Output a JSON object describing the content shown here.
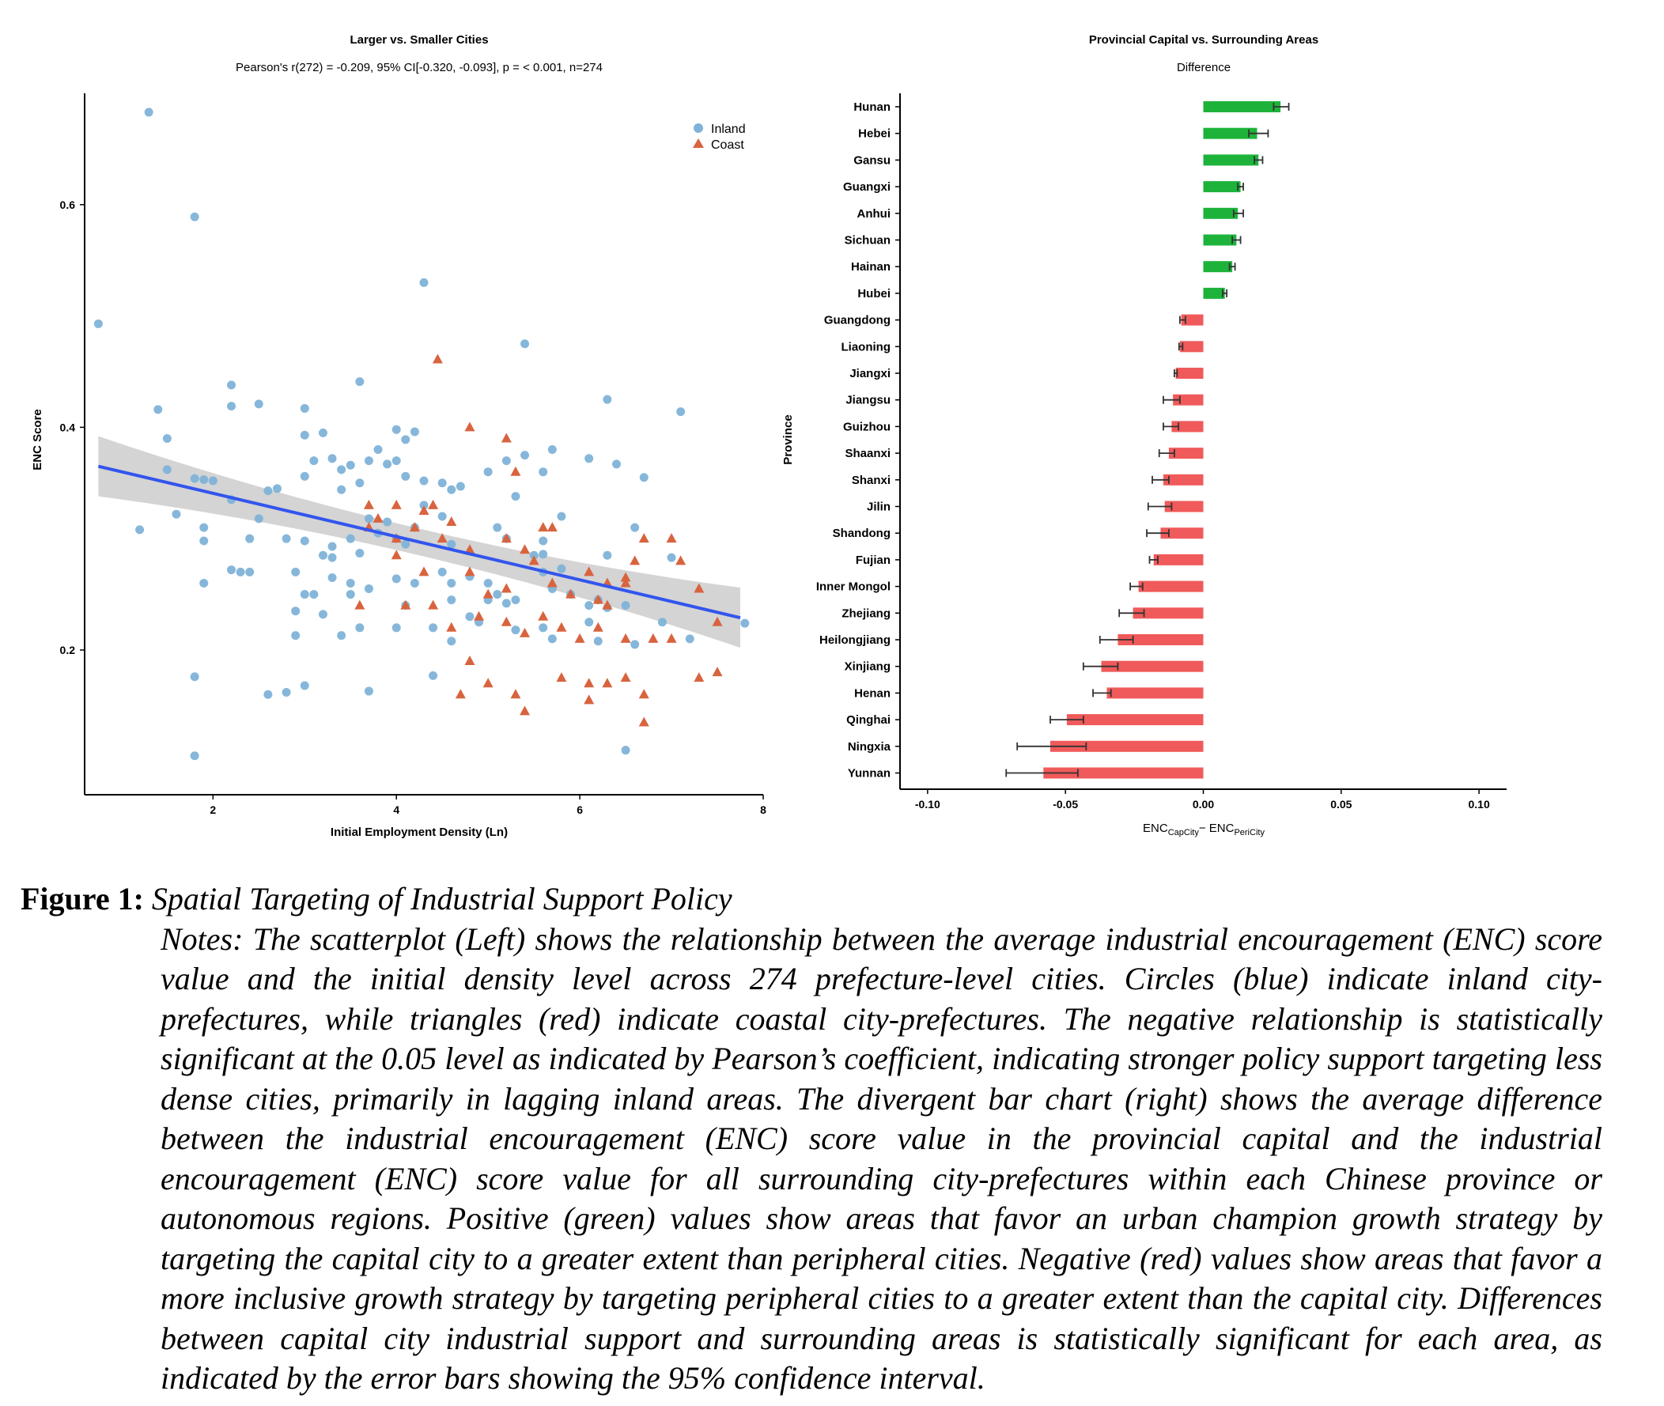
{
  "scatter": {
    "title": "Larger vs. Smaller Cities",
    "subtitle": "Pearson's r(272) = -0.209, 95% CI[-0.320, -0.093], p = < 0.001, n=274",
    "xlabel": "Initial Employment Density (Ln)",
    "ylabel": "ENC Score",
    "legend": [
      "Inland",
      "Coast"
    ],
    "colors": {
      "inland": "#7fb3d8",
      "coast": "#d8643f",
      "fit": "#3355ee",
      "band": "#cccccc"
    }
  },
  "bars": {
    "title": "Provincial Capital vs. Surrounding Areas",
    "subtitle": "Difference",
    "ylabel": "Province",
    "xlabel_main": "ENC",
    "xlabel_sub1": "CapCity",
    "xlabel_mid": "− ENC",
    "xlabel_sub2": "PeriCity",
    "colors": {
      "positive": "#1db33a",
      "negative": "#f05a5a"
    }
  },
  "chart_data": [
    {
      "type": "scatter",
      "title": "Larger vs. Smaller Cities",
      "xlabel": "Initial Employment Density (Ln)",
      "ylabel": "ENC Score",
      "xlim": [
        0.6,
        8.0
      ],
      "ylim": [
        0.07,
        0.7
      ],
      "xticks": [
        2,
        4,
        6,
        8
      ],
      "yticks": [
        0.2,
        0.4,
        0.6
      ],
      "grid": false,
      "legend_position": "top-right",
      "fit": {
        "x": [
          0.75,
          7.75
        ],
        "y": [
          0.365,
          0.229
        ],
        "ci_half_width_ends": 0.027,
        "ci_half_width_mid": 0.012
      },
      "series": [
        {
          "name": "Inland",
          "points": [
            [
              0.75,
              0.493
            ],
            [
              1.3,
              0.683
            ],
            [
              1.8,
              0.589
            ],
            [
              4.3,
              0.53
            ],
            [
              5.4,
              0.475
            ],
            [
              3.6,
              0.441
            ],
            [
              1.4,
              0.416
            ],
            [
              2.2,
              0.419
            ],
            [
              2.2,
              0.438
            ],
            [
              2.5,
              0.421
            ],
            [
              3.0,
              0.417
            ],
            [
              1.5,
              0.39
            ],
            [
              3.0,
              0.393
            ],
            [
              3.2,
              0.395
            ],
            [
              4.0,
              0.398
            ],
            [
              4.2,
              0.396
            ],
            [
              4.1,
              0.389
            ],
            [
              4.0,
              0.37
            ],
            [
              3.1,
              0.37
            ],
            [
              3.3,
              0.372
            ],
            [
              3.4,
              0.362
            ],
            [
              3.5,
              0.366
            ],
            [
              3.7,
              0.37
            ],
            [
              3.8,
              0.38
            ],
            [
              3.9,
              0.367
            ],
            [
              4.1,
              0.356
            ],
            [
              4.3,
              0.352
            ],
            [
              4.5,
              0.35
            ],
            [
              4.7,
              0.347
            ],
            [
              5.0,
              0.36
            ],
            [
              5.2,
              0.37
            ],
            [
              5.4,
              0.375
            ],
            [
              5.6,
              0.36
            ],
            [
              5.7,
              0.38
            ],
            [
              6.1,
              0.372
            ],
            [
              6.3,
              0.425
            ],
            [
              6.4,
              0.367
            ],
            [
              6.7,
              0.355
            ],
            [
              7.1,
              0.414
            ],
            [
              1.5,
              0.362
            ],
            [
              1.8,
              0.354
            ],
            [
              1.9,
              0.353
            ],
            [
              2.0,
              0.352
            ],
            [
              2.7,
              0.345
            ],
            [
              2.6,
              0.343
            ],
            [
              3.4,
              0.344
            ],
            [
              3.6,
              0.35
            ],
            [
              3.0,
              0.356
            ],
            [
              4.6,
              0.344
            ],
            [
              5.3,
              0.338
            ],
            [
              4.3,
              0.33
            ],
            [
              4.5,
              0.32
            ],
            [
              3.9,
              0.315
            ],
            [
              3.7,
              0.318
            ],
            [
              3.8,
              0.305
            ],
            [
              2.4,
              0.3
            ],
            [
              1.6,
              0.322
            ],
            [
              1.2,
              0.308
            ],
            [
              1.9,
              0.298
            ],
            [
              1.9,
              0.31
            ],
            [
              2.2,
              0.335
            ],
            [
              2.5,
              0.318
            ],
            [
              2.8,
              0.3
            ],
            [
              3.0,
              0.298
            ],
            [
              3.3,
              0.293
            ],
            [
              3.2,
              0.285
            ],
            [
              3.3,
              0.283
            ],
            [
              3.5,
              0.3
            ],
            [
              3.6,
              0.287
            ],
            [
              4.0,
              0.3
            ],
            [
              4.1,
              0.295
            ],
            [
              4.2,
              0.31
            ],
            [
              4.6,
              0.295
            ],
            [
              5.1,
              0.31
            ],
            [
              5.2,
              0.3
            ],
            [
              5.6,
              0.298
            ],
            [
              5.8,
              0.32
            ],
            [
              5.6,
              0.286
            ],
            [
              5.5,
              0.285
            ],
            [
              5.6,
              0.27
            ],
            [
              5.8,
              0.273
            ],
            [
              6.3,
              0.285
            ],
            [
              6.6,
              0.31
            ],
            [
              7.0,
              0.283
            ],
            [
              2.2,
              0.272
            ],
            [
              2.3,
              0.27
            ],
            [
              2.4,
              0.27
            ],
            [
              2.9,
              0.27
            ],
            [
              3.1,
              0.25
            ],
            [
              3.3,
              0.265
            ],
            [
              3.5,
              0.26
            ],
            [
              4.0,
              0.264
            ],
            [
              4.2,
              0.26
            ],
            [
              4.5,
              0.27
            ],
            [
              4.6,
              0.26
            ],
            [
              4.8,
              0.266
            ],
            [
              5.0,
              0.26
            ],
            [
              5.1,
              0.25
            ],
            [
              5.3,
              0.245
            ],
            [
              5.7,
              0.255
            ],
            [
              5.9,
              0.25
            ],
            [
              6.1,
              0.24
            ],
            [
              6.2,
              0.245
            ],
            [
              6.5,
              0.24
            ],
            [
              1.9,
              0.26
            ],
            [
              2.9,
              0.235
            ],
            [
              3.2,
              0.232
            ],
            [
              3.0,
              0.25
            ],
            [
              3.5,
              0.25
            ],
            [
              3.7,
              0.255
            ],
            [
              4.1,
              0.24
            ],
            [
              4.6,
              0.245
            ],
            [
              4.8,
              0.23
            ],
            [
              4.9,
              0.225
            ],
            [
              5.0,
              0.245
            ],
            [
              5.2,
              0.242
            ],
            [
              5.3,
              0.218
            ],
            [
              5.6,
              0.22
            ],
            [
              6.1,
              0.225
            ],
            [
              6.3,
              0.238
            ],
            [
              6.9,
              0.225
            ],
            [
              7.2,
              0.21
            ],
            [
              7.8,
              0.224
            ],
            [
              2.9,
              0.213
            ],
            [
              3.4,
              0.213
            ],
            [
              3.6,
              0.22
            ],
            [
              4.0,
              0.22
            ],
            [
              4.4,
              0.22
            ],
            [
              4.6,
              0.208
            ],
            [
              5.7,
              0.21
            ],
            [
              6.2,
              0.208
            ],
            [
              6.6,
              0.205
            ],
            [
              1.8,
              0.176
            ],
            [
              3.0,
              0.168
            ],
            [
              2.8,
              0.162
            ],
            [
              2.6,
              0.16
            ],
            [
              3.7,
              0.163
            ],
            [
              4.4,
              0.177
            ],
            [
              1.8,
              0.105
            ],
            [
              6.5,
              0.11
            ]
          ]
        },
        {
          "name": "Coast",
          "points": [
            [
              4.45,
              0.461
            ],
            [
              4.8,
              0.4
            ],
            [
              5.2,
              0.39
            ],
            [
              5.3,
              0.36
            ],
            [
              4.4,
              0.33
            ],
            [
              4.0,
              0.33
            ],
            [
              3.7,
              0.33
            ],
            [
              4.3,
              0.325
            ],
            [
              3.8,
              0.318
            ],
            [
              4.6,
              0.315
            ],
            [
              4.2,
              0.31
            ],
            [
              3.7,
              0.31
            ],
            [
              4.0,
              0.3
            ],
            [
              4.5,
              0.3
            ],
            [
              4.8,
              0.29
            ],
            [
              5.2,
              0.3
            ],
            [
              5.6,
              0.31
            ],
            [
              5.7,
              0.31
            ],
            [
              5.4,
              0.29
            ],
            [
              5.5,
              0.28
            ],
            [
              6.1,
              0.27
            ],
            [
              6.3,
              0.26
            ],
            [
              6.5,
              0.265
            ],
            [
              6.7,
              0.3
            ],
            [
              7.0,
              0.3
            ],
            [
              7.1,
              0.28
            ],
            [
              6.6,
              0.28
            ],
            [
              6.5,
              0.26
            ],
            [
              4.0,
              0.285
            ],
            [
              4.3,
              0.27
            ],
            [
              4.8,
              0.27
            ],
            [
              5.0,
              0.25
            ],
            [
              5.2,
              0.255
            ],
            [
              5.7,
              0.26
            ],
            [
              5.9,
              0.25
            ],
            [
              6.2,
              0.245
            ],
            [
              6.3,
              0.24
            ],
            [
              3.6,
              0.24
            ],
            [
              4.1,
              0.24
            ],
            [
              4.4,
              0.24
            ],
            [
              4.6,
              0.22
            ],
            [
              4.9,
              0.23
            ],
            [
              5.2,
              0.225
            ],
            [
              5.4,
              0.215
            ],
            [
              5.6,
              0.23
            ],
            [
              5.8,
              0.22
            ],
            [
              6.0,
              0.21
            ],
            [
              6.2,
              0.22
            ],
            [
              6.5,
              0.21
            ],
            [
              6.8,
              0.21
            ],
            [
              7.0,
              0.21
            ],
            [
              7.3,
              0.255
            ],
            [
              7.5,
              0.225
            ],
            [
              4.8,
              0.19
            ],
            [
              5.0,
              0.17
            ],
            [
              5.3,
              0.16
            ],
            [
              5.4,
              0.145
            ],
            [
              5.8,
              0.175
            ],
            [
              6.1,
              0.17
            ],
            [
              6.3,
              0.17
            ],
            [
              6.5,
              0.175
            ],
            [
              6.7,
              0.16
            ],
            [
              7.3,
              0.175
            ],
            [
              7.5,
              0.18
            ],
            [
              4.7,
              0.16
            ],
            [
              6.1,
              0.155
            ],
            [
              6.7,
              0.135
            ]
          ]
        }
      ]
    },
    {
      "type": "bar",
      "orientation": "horizontal",
      "title": "Provincial Capital vs. Surrounding Areas",
      "subtitle": "Difference",
      "xlabel": "ENC CapCity − ENC PeriCity",
      "ylabel": "Province",
      "xlim": [
        -0.11,
        0.11
      ],
      "xticks": [
        -0.1,
        -0.05,
        0.0,
        0.05,
        0.1
      ],
      "tick_labels": [
        "-0.10",
        "-0.05",
        "0.00",
        "0.05",
        "0.10"
      ],
      "categories": [
        "Hunan",
        "Hebei",
        "Gansu",
        "Guangxi",
        "Anhui",
        "Sichuan",
        "Hainan",
        "Hubei",
        "Guangdong",
        "Liaoning",
        "Jiangxi",
        "Jiangsu",
        "Guizhou",
        "Shaanxi",
        "Shanxi",
        "Jilin",
        "Shandong",
        "Fujian",
        "Inner Mongol",
        "Zhejiang",
        "Heilongjiang",
        "Xinjiang",
        "Henan",
        "Qinghai",
        "Ningxia",
        "Yunnan"
      ],
      "values": [
        0.028,
        0.0195,
        0.02,
        0.0135,
        0.0125,
        0.012,
        0.0105,
        0.0078,
        -0.008,
        -0.0085,
        -0.01,
        -0.011,
        -0.0115,
        -0.0125,
        -0.0145,
        -0.014,
        -0.0155,
        -0.018,
        -0.0235,
        -0.0255,
        -0.031,
        -0.037,
        -0.035,
        -0.0495,
        -0.0555,
        -0.058
      ],
      "err_low": [
        0.0255,
        0.0165,
        0.0185,
        0.0125,
        0.011,
        0.0105,
        0.0095,
        0.007,
        -0.0085,
        -0.0088,
        -0.0105,
        -0.0145,
        -0.0145,
        -0.016,
        -0.0185,
        -0.02,
        -0.0205,
        -0.0195,
        -0.0265,
        -0.0305,
        -0.0375,
        -0.0435,
        -0.04,
        -0.0555,
        -0.0675,
        -0.0715
      ],
      "err_high": [
        0.031,
        0.0235,
        0.0215,
        0.0145,
        0.0145,
        0.0135,
        0.0115,
        0.0085,
        -0.0065,
        -0.0075,
        -0.0095,
        -0.0085,
        -0.009,
        -0.0105,
        -0.0125,
        -0.0115,
        -0.0125,
        -0.0165,
        -0.022,
        -0.0215,
        -0.0255,
        -0.031,
        -0.0335,
        -0.0435,
        -0.0425,
        -0.0455
      ]
    }
  ],
  "caption": {
    "label": "Figure 1:",
    "title": "Spatial Targeting of Industrial Support Policy",
    "notes": "Notes: The scatterplot (Left) shows the relationship between the average industrial encouragement (ENC) score value and the initial density level across 274 prefecture-level cities. Circles (blue) indicate inland city-prefectures, while triangles (red) indicate coastal city-prefectures. The negative relationship is statistically significant at the 0.05 level as indicated by Pearson’s coefficient, indicating stronger policy support targeting less dense cities, primarily in lagging inland areas. The divergent bar chart (right) shows the average difference between the industrial encouragement (ENC) score value in the provincial capital and the industrial encouragement (ENC) score value for all surrounding city-prefectures within each Chinese province or autonomous regions. Positive (green) values show areas that favor an urban champion growth strategy by targeting the capital city to a greater extent than peripheral cities. Negative (red) values show areas that favor a more inclusive growth strategy by targeting peripheral cities to a greater extent than the capital city. Differences between capital city industrial support and surrounding areas is statistically significant for each area, as indicated by the error bars showing the 95% confidence interval."
  }
}
